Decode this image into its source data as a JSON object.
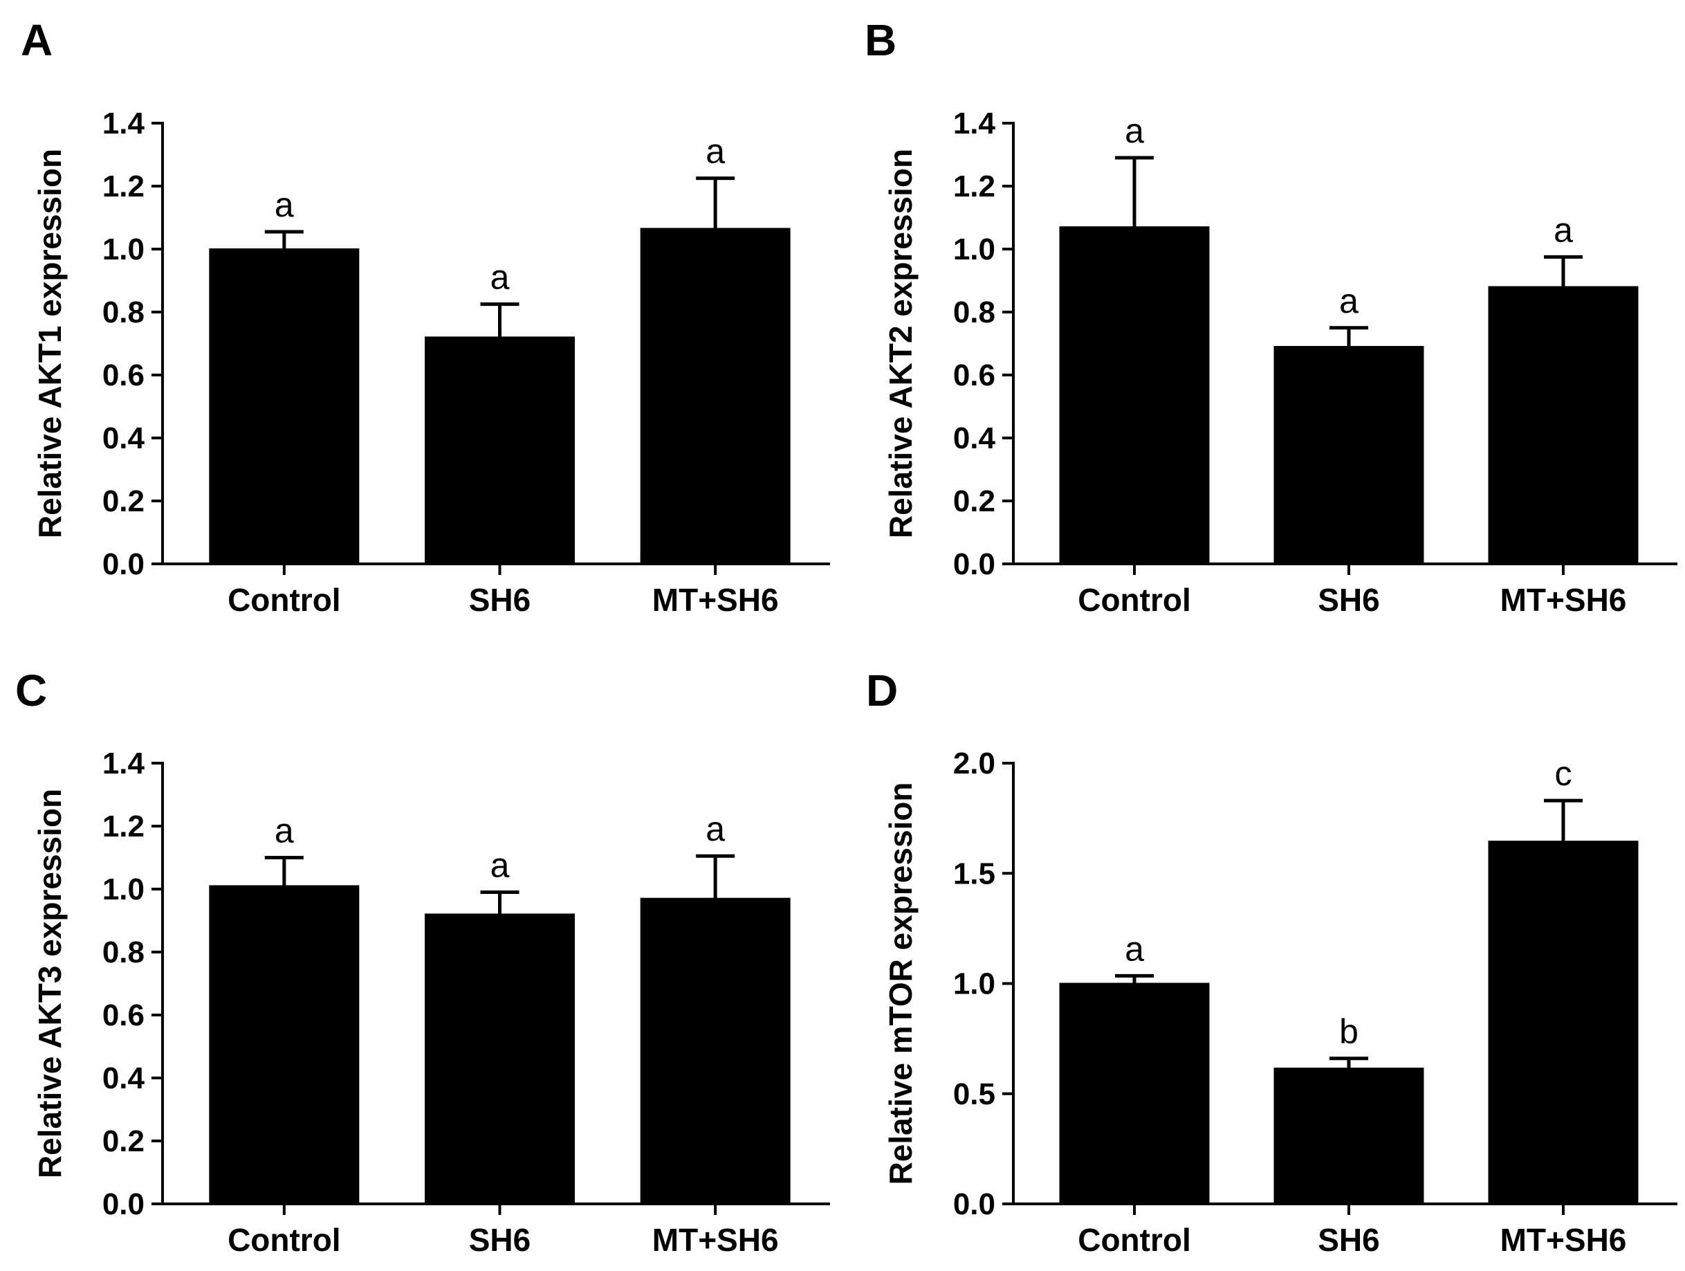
{
  "chart_data": [
    {
      "type": "bar",
      "panel": "A",
      "categories": [
        "Control",
        "SH6",
        "MT+SH6"
      ],
      "values": [
        1.0,
        0.72,
        1.065
      ],
      "errors": [
        0.055,
        0.105,
        0.16
      ],
      "significance": [
        "a",
        "a",
        "a"
      ],
      "ylabel": "Relative AKT1 expression",
      "ylim": [
        0,
        1.4
      ],
      "yticks": [
        0.0,
        0.2,
        0.4,
        0.6,
        0.8,
        1.0,
        1.2,
        1.4
      ],
      "ytick_labels": [
        "0.0",
        "0.2",
        "0.4",
        "0.6",
        "0.8",
        "1.0",
        "1.2",
        "1.4"
      ],
      "bar_color": "#000000",
      "grid": false
    },
    {
      "type": "bar",
      "panel": "B",
      "categories": [
        "Control",
        "SH6",
        "MT+SH6"
      ],
      "values": [
        1.07,
        0.69,
        0.88
      ],
      "errors": [
        0.22,
        0.06,
        0.095
      ],
      "significance": [
        "a",
        "a",
        "a"
      ],
      "ylabel": "Relative AKT2 expression",
      "ylim": [
        0,
        1.4
      ],
      "yticks": [
        0.0,
        0.2,
        0.4,
        0.6,
        0.8,
        1.0,
        1.2,
        1.4
      ],
      "ytick_labels": [
        "0.0",
        "0.2",
        "0.4",
        "0.6",
        "0.8",
        "1.0",
        "1.2",
        "1.4"
      ],
      "bar_color": "#000000",
      "grid": false
    },
    {
      "type": "bar",
      "panel": "C",
      "categories": [
        "Control",
        "SH6",
        "MT+SH6"
      ],
      "values": [
        1.01,
        0.92,
        0.97
      ],
      "errors": [
        0.09,
        0.07,
        0.135
      ],
      "significance": [
        "a",
        "a",
        "a"
      ],
      "ylabel": "Relative AKT3 expression",
      "ylim": [
        0,
        1.4
      ],
      "yticks": [
        0.0,
        0.2,
        0.4,
        0.6,
        0.8,
        1.0,
        1.2,
        1.4
      ],
      "ytick_labels": [
        "0.0",
        "0.2",
        "0.4",
        "0.6",
        "0.8",
        "1.0",
        "1.2",
        "1.4"
      ],
      "bar_color": "#000000",
      "grid": false
    },
    {
      "type": "bar",
      "panel": "D",
      "categories": [
        "Control",
        "SH6",
        "MT+SH6"
      ],
      "values": [
        1.0,
        0.615,
        1.645
      ],
      "errors": [
        0.035,
        0.045,
        0.185
      ],
      "significance": [
        "a",
        "b",
        "c"
      ],
      "ylabel": "Relative mTOR expression",
      "ylim": [
        0,
        2.0
      ],
      "yticks": [
        0.0,
        0.5,
        1.0,
        1.5,
        2.0
      ],
      "ytick_labels": [
        "0.0",
        "0.5",
        "1.0",
        "1.5",
        "2.0"
      ],
      "bar_color": "#000000",
      "grid": false
    }
  ]
}
